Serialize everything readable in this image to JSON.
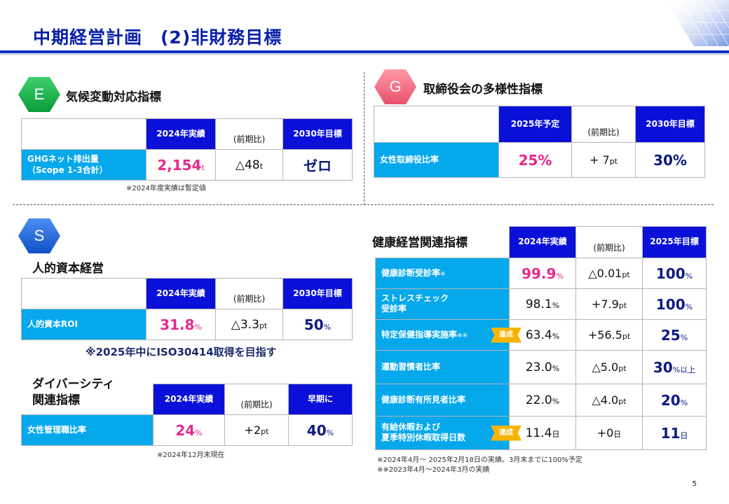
{
  "title": "中期経営計画　(2)非財務目標",
  "env": {
    "badge": "E",
    "heading": "気候変動対応指標",
    "headers": [
      "2024年実績",
      "(前期比)",
      "2030年目標"
    ],
    "row": {
      "label": "GHGネット排出量\n（Scope 1-3合計）",
      "actual": "2,154",
      "actual_unit": "t",
      "diff": "△48",
      "diff_unit": "t",
      "target": "ゼロ"
    },
    "note": "※2024年度実績は暫定値"
  },
  "gov": {
    "badge": "G",
    "heading": "取締役会の多様性指標",
    "headers": [
      "2025年予定",
      "(前期比)",
      "2030年目標"
    ],
    "row": {
      "label": "女性取締役比率",
      "actual": "25%",
      "diff": "+ 7",
      "diff_unit": "pt",
      "target": "30%"
    }
  },
  "social": {
    "badge": "S",
    "human_capital": {
      "heading": "人的資本経営",
      "headers": [
        "2024年実績",
        "(前期比)",
        "2030年目標"
      ],
      "row": {
        "label": "人的資本ROI",
        "actual": "31.8",
        "actual_unit": "%",
        "diff": "△3.3",
        "diff_unit": "pt",
        "target": "50",
        "target_unit": "%"
      },
      "goal": "※2025年中にISO30414取得を目指す"
    },
    "diversity": {
      "heading": "ダイバーシティ\n関連指標",
      "headers": [
        "2024年実績",
        "(前期比)",
        "早期に"
      ],
      "row": {
        "label": "女性管理職比率",
        "actual": "24",
        "actual_unit": "%",
        "diff": "+2",
        "diff_unit": "pt",
        "target": "40",
        "target_unit": "%"
      },
      "note": "※2024年12月末現在"
    },
    "health": {
      "heading": "健康経営関連指標",
      "headers": [
        "2024年実績",
        "(前期比)",
        "2025年目標"
      ],
      "rows": [
        {
          "label": "健康診断受診率",
          "mark": "※",
          "actual": "99.9",
          "actual_unit": "%",
          "diff": "△0.01",
          "diff_unit": "pt",
          "target": "100",
          "target_unit": "%",
          "highlight": true
        },
        {
          "label": "ストレスチェック\n受診率",
          "mark": "",
          "actual": "98.1",
          "actual_unit": "%",
          "diff": "+7.9",
          "diff_unit": "pt",
          "target": "100",
          "target_unit": "%",
          "highlight": false
        },
        {
          "label": "特定保健指導実施率",
          "mark": "※※",
          "actual": "63.4",
          "actual_unit": "%",
          "diff": "+56.5",
          "diff_unit": "pt",
          "target": "25",
          "target_unit": "%",
          "badge": "達成",
          "highlight": false
        },
        {
          "label": "運動習慣者比率",
          "mark": "",
          "actual": "23.0",
          "actual_unit": "%",
          "diff": "△5.0",
          "diff_unit": "pt",
          "target": "30",
          "target_unit": "%以上",
          "highlight": false
        },
        {
          "label": "健康診断有所見者比率",
          "mark": "",
          "actual": "22.0",
          "actual_unit": "%",
          "diff": "△4.0",
          "diff_unit": "pt",
          "target": "20",
          "target_unit": "%",
          "highlight": false
        },
        {
          "label": "有給休暇および\n夏季特別休暇取得日数",
          "mark": "",
          "actual": "11.4",
          "actual_unit": "日",
          "diff": "+0",
          "diff_unit": "日",
          "target": "11",
          "target_unit": "日",
          "badge": "達成",
          "highlight": false
        }
      ],
      "notes": [
        "※2024年4月～ 2025年2月18日の実績。3月末までに100%予定",
        "※※2023年4月～2024年3月の実績"
      ]
    }
  },
  "page_number": "5",
  "colors": {
    "header_blue": "#0a10d8",
    "label_cyan": "#06a8ec",
    "accent_pink": "#e8288a",
    "title_blue": "#0a1fa8",
    "badge_gold": "#f6b400"
  }
}
